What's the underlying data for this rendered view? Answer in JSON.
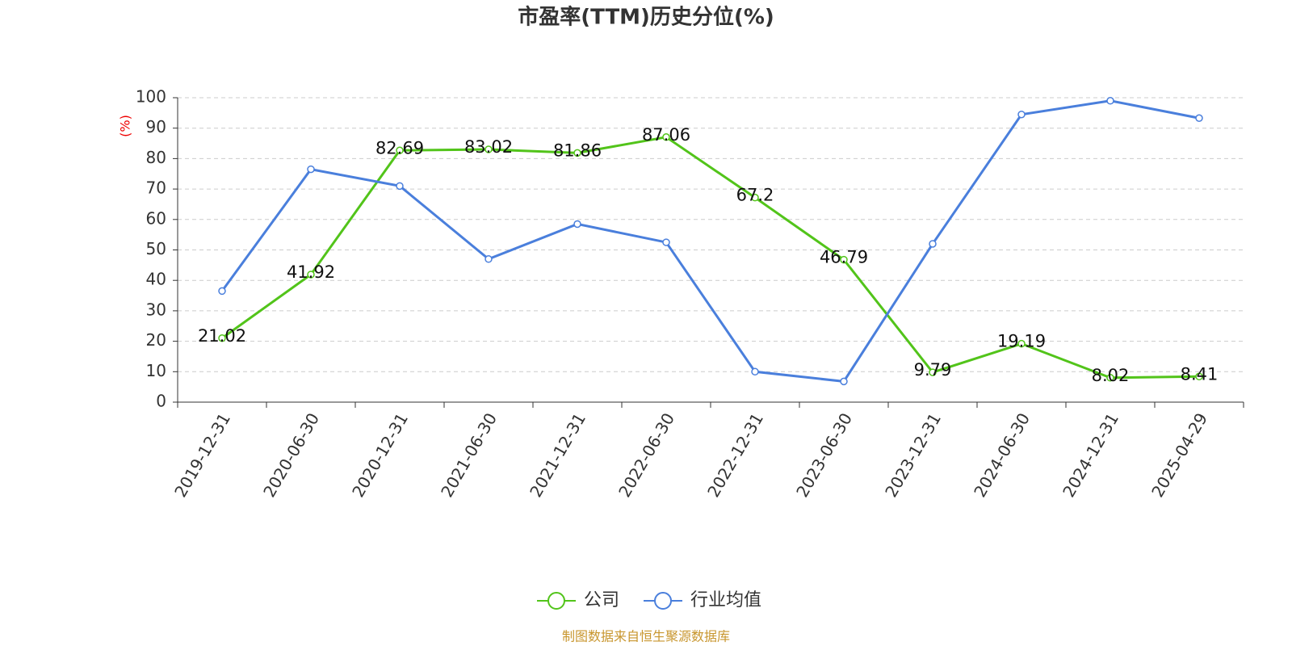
{
  "chart_data": {
    "type": "line",
    "title": "市盈率(TTM)历史分位(%)",
    "y_label": "(%)",
    "categories": [
      "2019-12-31",
      "2020-06-30",
      "2020-12-31",
      "2021-06-30",
      "2021-12-31",
      "2022-06-30",
      "2022-12-31",
      "2023-06-30",
      "2023-12-31",
      "2024-06-30",
      "2024-12-31",
      "2025-04-29"
    ],
    "series": [
      {
        "name": "公司",
        "color": "#52c41a",
        "show_labels": true,
        "values": [
          21.02,
          41.92,
          82.69,
          83.02,
          81.86,
          87.06,
          67.2,
          46.79,
          9.79,
          19.19,
          8.02,
          8.41
        ]
      },
      {
        "name": "行业均值",
        "color": "#4a7fdc",
        "show_labels": false,
        "values": [
          36.5,
          76.5,
          71,
          47,
          58.5,
          52.5,
          10,
          6.8,
          52,
          94.5,
          99,
          93.3
        ]
      }
    ],
    "ylim": [
      0,
      100
    ],
    "yticks": [
      0,
      10,
      20,
      30,
      40,
      50,
      60,
      70,
      80,
      90,
      100
    ],
    "grid": true,
    "legend": "bottom",
    "source": "制图数据来自恒生聚源数据库"
  }
}
